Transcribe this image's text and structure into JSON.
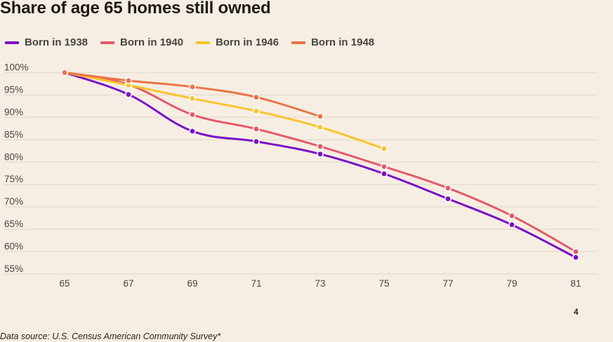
{
  "chart_data": {
    "type": "line",
    "title": "Share of age 65 homes still owned",
    "xlabel": "",
    "ylabel": "",
    "x": [
      65,
      67,
      69,
      71,
      73,
      75,
      77,
      79,
      81
    ],
    "x_tick_labels": [
      "65",
      "67",
      "69",
      "71",
      "73",
      "75",
      "77",
      "79",
      "81"
    ],
    "y_tick_labels": [
      "100%",
      "95%",
      "90%",
      "85%",
      "80%",
      "75%",
      "70%",
      "65%",
      "60%",
      "55%"
    ],
    "y_ticks": [
      100,
      95,
      90,
      85,
      80,
      75,
      70,
      65,
      60,
      55
    ],
    "ylim": [
      55,
      100
    ],
    "grid": true,
    "legend_position": "top-left",
    "series": [
      {
        "name": "Born in 1938",
        "color": "#7a10c8",
        "values": [
          100,
          95.1,
          86.9,
          84.6,
          81.8,
          77.4,
          71.8,
          66.0,
          58.7
        ]
      },
      {
        "name": "Born in 1940",
        "color": "#e45a6a",
        "values": [
          100,
          97.3,
          90.6,
          87.4,
          83.5,
          79.0,
          74.2,
          68.0,
          60.0
        ]
      },
      {
        "name": "Born in 1946",
        "color": "#f8c42c",
        "values": [
          100,
          97.2,
          94.2,
          91.4,
          87.8,
          83.0
        ]
      },
      {
        "name": "Born in 1948",
        "color": "#ec7347",
        "values": [
          100,
          98.2,
          96.8,
          94.5,
          90.2
        ]
      }
    ]
  },
  "page_number": "4",
  "source": "Data source: U.S. Census American Community Survey*"
}
